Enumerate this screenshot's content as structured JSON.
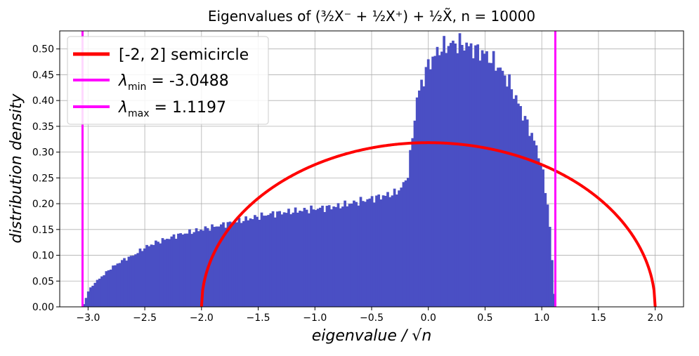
{
  "chart_data": {
    "type": "bar",
    "title": "Eigenvalues of (³⁄₂X⁻ + ¹⁄₂X⁺) + ¹⁄₂X̃, n = 10000",
    "xlabel": "eigenvalue / √n",
    "ylabel": "distribution density",
    "xlim": [
      -3.25,
      2.25
    ],
    "ylim": [
      0.0,
      0.535
    ],
    "grid": true,
    "legend_position": "top-left",
    "xticks": [
      -3.0,
      -2.5,
      -2.0,
      -1.5,
      -1.0,
      -0.5,
      0.0,
      0.5,
      1.0,
      1.5,
      2.0
    ],
    "xtick_labels": [
      "−3.0",
      "−2.5",
      "−2.0",
      "−1.5",
      "−1.0",
      "−0.5",
      "0.0",
      "0.5",
      "1.0",
      "1.5",
      "2.0"
    ],
    "yticks": [
      0.0,
      0.05,
      0.1,
      0.15,
      0.2,
      0.25,
      0.3,
      0.35,
      0.4,
      0.45,
      0.5
    ],
    "ytick_labels": [
      "0.00",
      "0.05",
      "0.10",
      "0.15",
      "0.20",
      "0.25",
      "0.30",
      "0.35",
      "0.40",
      "0.45",
      "0.50"
    ],
    "histogram": {
      "color": "#4a4fc4",
      "x_start": -3.0488,
      "x_end": 1.1197,
      "profile_x": [
        -3.0488,
        -3.03,
        -3.0,
        -2.95,
        -2.9,
        -2.8,
        -2.7,
        -2.6,
        -2.5,
        -2.4,
        -2.2,
        -2.0,
        -1.8,
        -1.6,
        -1.4,
        -1.2,
        -1.0,
        -0.8,
        -0.6,
        -0.4,
        -0.3,
        -0.25,
        -0.2,
        -0.18,
        -0.15,
        -0.12,
        -0.1,
        -0.05,
        0.0,
        0.1,
        0.2,
        0.3,
        0.4,
        0.5,
        0.6,
        0.7,
        0.8,
        0.9,
        0.95,
        1.0,
        1.05,
        1.08,
        1.1,
        1.1197
      ],
      "profile_density": [
        0.0,
        0.01,
        0.03,
        0.045,
        0.055,
        0.075,
        0.09,
        0.1,
        0.115,
        0.125,
        0.14,
        0.15,
        0.16,
        0.17,
        0.18,
        0.185,
        0.19,
        0.195,
        0.205,
        0.215,
        0.22,
        0.228,
        0.245,
        0.26,
        0.31,
        0.37,
        0.405,
        0.44,
        0.47,
        0.5,
        0.51,
        0.51,
        0.5,
        0.49,
        0.47,
        0.44,
        0.39,
        0.34,
        0.31,
        0.27,
        0.2,
        0.13,
        0.05,
        0.0
      ]
    },
    "series": [
      {
        "name": "[-2, 2] semicircle",
        "type": "line",
        "color": "#ff0000",
        "x_range": [
          -2.0,
          2.0
        ],
        "function": "sqrt(4 - x^2) / (2*pi)"
      }
    ],
    "vlines": [
      {
        "name": "λmin = -3.0488",
        "x": -3.0488,
        "color": "#ff00ff"
      },
      {
        "name": "λmax = 1.1197",
        "x": 1.1197,
        "color": "#ff00ff"
      }
    ],
    "legend": [
      {
        "symbol": "λ",
        "label": "[-2, 2] semicircle",
        "subscript": "",
        "suffix": "",
        "color": "#ff0000"
      },
      {
        "symbol": "λ",
        "label": "",
        "subscript": "min",
        "suffix": " = -3.0488",
        "color": "#ff00ff"
      },
      {
        "symbol": "λ",
        "label": "",
        "subscript": "max",
        "suffix": " = 1.1197",
        "color": "#ff00ff"
      }
    ]
  }
}
